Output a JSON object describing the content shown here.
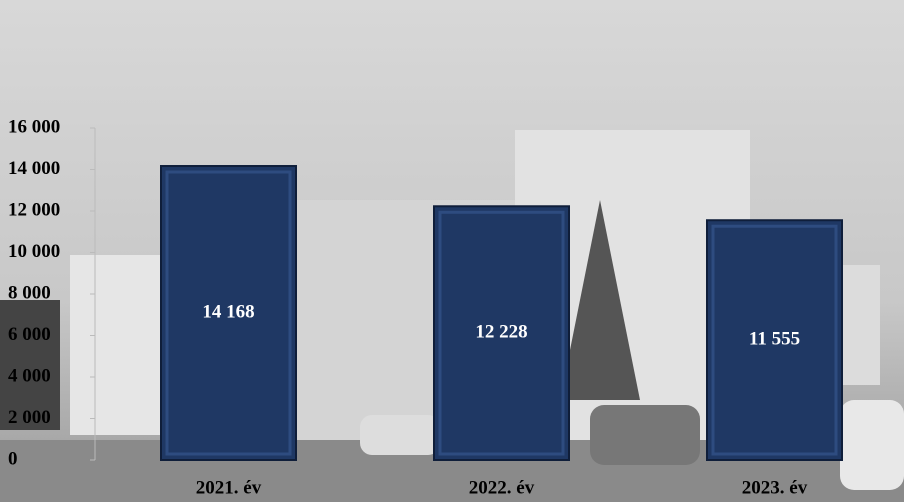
{
  "chart_data": {
    "type": "bar",
    "categories": [
      "2021. év",
      "2022. év",
      "2023. év"
    ],
    "values": [
      14168,
      12228,
      11555
    ],
    "value_labels": [
      "14 168",
      "12 228",
      "11 555"
    ],
    "color": "#1f3864",
    "ylim": [
      0,
      16000
    ],
    "yticks": [
      0,
      {
        "value": 2000,
        "label": "2 000"
      },
      {
        "value": 4000,
        "label": "4 000"
      },
      {
        "value": 6000,
        "label": "6 000"
      },
      {
        "value": 8000,
        "label": "8 000"
      },
      {
        "value": 10000,
        "label": "10 000"
      },
      {
        "value": 12000,
        "label": "12 000"
      },
      {
        "value": 14000,
        "label": "14 000"
      },
      {
        "value": 16000,
        "label": "16 000"
      }
    ],
    "grid": false
  }
}
